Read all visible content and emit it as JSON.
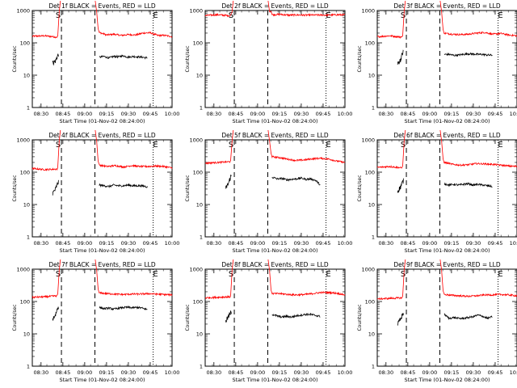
{
  "figure": {
    "panels": [
      {
        "title": "Det 1f BLACK = Events, RED = LLD"
      },
      {
        "title": "Det 2f BLACK = Events, RED = LLD"
      },
      {
        "title": "Det 3f BLACK = Events, RED = LLD"
      },
      {
        "title": "Det 4f BLACK = Events, RED = LLD"
      },
      {
        "title": "Det 5f BLACK = Events, RED = LLD"
      },
      {
        "title": "Det 6f BLACK = Events, RED = LLD"
      },
      {
        "title": "Det 7f BLACK = Events, RED = LLD"
      },
      {
        "title": "Det 8f BLACK = Events, RED = LLD"
      },
      {
        "title": "Det 9f BLACK = Events, RED = LLD"
      }
    ],
    "xlabel": "Start Time (01-Nov-02 08:24:00)",
    "ylabel": "Counts/sec",
    "x_ticks": [
      "08:30",
      "08:45",
      "09:00",
      "09:15",
      "09:30",
      "09:45",
      "10:00"
    ],
    "y_ticks": [
      "1",
      "10",
      "100",
      "1000"
    ],
    "markers": {
      "start": "S",
      "end": "E"
    }
  },
  "chart_data": {
    "type": "line",
    "layout": "3x3 grid",
    "x_unit": "time (minutes since 08:24:00 on 01-Nov-02)",
    "xlim": [
      0,
      96
    ],
    "ylim": [
      1,
      1000
    ],
    "y_scale": "log",
    "x_ticks": [
      6,
      21,
      36,
      51,
      66,
      81,
      96
    ],
    "dashed_lines": [
      20,
      43
    ],
    "dotted_lines": [
      83
    ],
    "gap": [
      22,
      43
    ],
    "colors": {
      "Events": "#000000",
      "LLD": "#ff0000"
    },
    "panels": [
      {
        "det": "1f",
        "lld": [
          160,
          165,
          150,
          160,
          210,
          175,
          185,
          170,
          180,
          175,
          200,
          205,
          170,
          170,
          155
        ],
        "events": [
          24,
          28,
          45,
          36,
          38,
          34,
          38,
          37,
          40,
          36,
          38,
          37,
          36,
          34
        ]
      },
      {
        "det": "2f",
        "lld": [
          700,
          740,
          690,
          720,
          740,
          760,
          720,
          730,
          720,
          725,
          725,
          720,
          740,
          730
        ],
        "events": []
      },
      {
        "det": "3f",
        "lld": [
          155,
          165,
          150,
          165,
          200,
          185,
          180,
          185,
          200,
          210,
          185,
          195,
          175,
          165
        ],
        "events": [
          22,
          30,
          55,
          44,
          44,
          41,
          42,
          44,
          46,
          45,
          44,
          44,
          42,
          42
        ]
      },
      {
        "det": "4f",
        "lld": [
          130,
          120,
          125,
          140,
          165,
          150,
          160,
          145,
          160,
          150,
          150,
          155,
          150,
          135
        ],
        "events": [
          22,
          30,
          50,
          40,
          38,
          36,
          40,
          38,
          38,
          40,
          38,
          38,
          38,
          35
        ]
      },
      {
        "det": "5f",
        "lld": [
          190,
          200,
          210,
          230,
          300,
          280,
          250,
          230,
          240,
          260,
          270,
          255,
          220,
          200
        ],
        "events": [
          30,
          45,
          80,
          70,
          62,
          64,
          58,
          60,
          62,
          66,
          60,
          62,
          56,
          40
        ]
      },
      {
        "det": "6f",
        "lld": [
          140,
          150,
          135,
          155,
          200,
          175,
          165,
          170,
          185,
          180,
          175,
          165,
          155,
          150
        ],
        "events": [
          25,
          35,
          55,
          44,
          40,
          42,
          40,
          42,
          44,
          40,
          42,
          40,
          38,
          36
        ]
      },
      {
        "det": "7f",
        "lld": [
          135,
          140,
          150,
          170,
          185,
          175,
          170,
          165,
          170,
          170,
          175,
          170,
          165,
          160
        ],
        "events": [
          28,
          40,
          70,
          66,
          60,
          62,
          58,
          62,
          65,
          66,
          64,
          66,
          62,
          56
        ]
      },
      {
        "det": "8f",
        "lld": [
          130,
          135,
          140,
          150,
          175,
          175,
          165,
          160,
          165,
          175,
          190,
          190,
          180,
          160
        ],
        "events": [
          24,
          34,
          48,
          40,
          36,
          33,
          35,
          33,
          36,
          38,
          40,
          40,
          37,
          35
        ]
      },
      {
        "det": "9f",
        "lld": [
          120,
          125,
          130,
          145,
          165,
          155,
          150,
          145,
          150,
          160,
          160,
          165,
          160,
          150
        ],
        "events": [
          20,
          28,
          45,
          40,
          30,
          32,
          30,
          30,
          32,
          34,
          38,
          35,
          30,
          34
        ]
      }
    ]
  }
}
